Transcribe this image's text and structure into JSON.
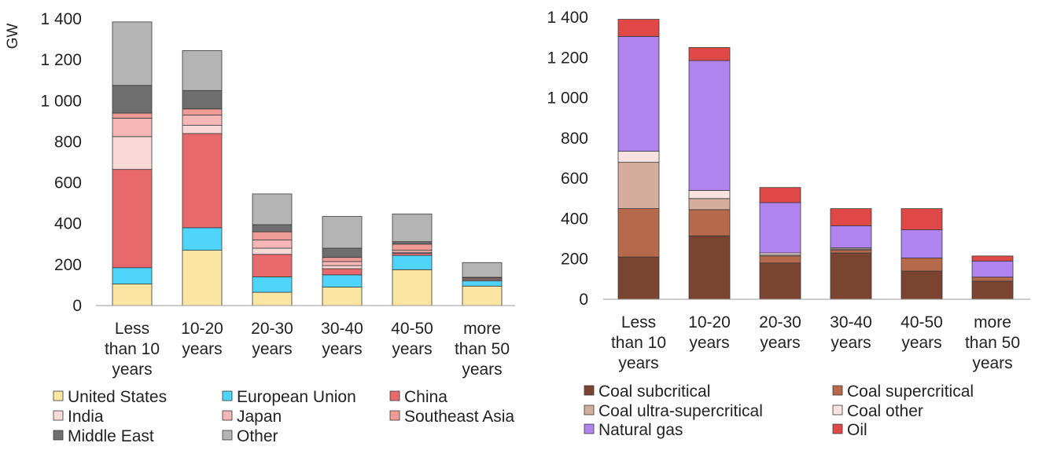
{
  "chart_data": [
    {
      "type": "bar",
      "stacked": true,
      "ylabel": "GW",
      "ylim": [
        0,
        1400
      ],
      "yticks": [
        "0",
        "200",
        "400",
        "600",
        "800",
        "1 000",
        "1 200",
        "1 400"
      ],
      "categories": [
        [
          "Less",
          "than 10",
          "years"
        ],
        [
          "10-20",
          "years"
        ],
        [
          "20-30",
          "years"
        ],
        [
          "30-40",
          "years"
        ],
        [
          "40-50",
          "years"
        ],
        [
          "more",
          "than 50",
          "years"
        ]
      ],
      "legend_position": "bottom",
      "series": [
        {
          "name": "United States",
          "color": "#fae5a3",
          "values": [
            105,
            270,
            65,
            90,
            175,
            95
          ]
        },
        {
          "name": "European Union",
          "color": "#4fd4fb",
          "values": [
            80,
            110,
            75,
            60,
            70,
            25
          ]
        },
        {
          "name": "China",
          "color": "#e8696b",
          "values": [
            480,
            460,
            110,
            30,
            10,
            0
          ]
        },
        {
          "name": "India",
          "color": "#f8d9d8",
          "values": [
            160,
            40,
            30,
            15,
            5,
            5
          ]
        },
        {
          "name": "Japan",
          "color": "#f6b6b5",
          "values": [
            90,
            50,
            40,
            20,
            10,
            5
          ]
        },
        {
          "name": "Southeast Asia",
          "color": "#ef9c96",
          "values": [
            25,
            30,
            40,
            20,
            30,
            5
          ]
        },
        {
          "name": "Middle East",
          "color": "#6e6e6e",
          "values": [
            135,
            90,
            35,
            45,
            12,
            3
          ]
        },
        {
          "name": "Other",
          "color": "#b4b4b4",
          "values": [
            310,
            195,
            150,
            155,
            135,
            72
          ]
        }
      ]
    },
    {
      "type": "bar",
      "stacked": true,
      "ylim": [
        0,
        1400
      ],
      "yticks": [
        "0",
        "200",
        "400",
        "600",
        "800",
        "1 000",
        "1 200",
        "1 400"
      ],
      "categories": [
        [
          "Less",
          "than 10",
          "years"
        ],
        [
          "10-20",
          "years"
        ],
        [
          "20-30",
          "years"
        ],
        [
          "30-40",
          "years"
        ],
        [
          "40-50",
          "years"
        ],
        [
          "more",
          "than 50",
          "years"
        ]
      ],
      "legend_position": "bottom",
      "series": [
        {
          "name": "Coal subcritical",
          "color": "#7a4430",
          "values": [
            210,
            315,
            180,
            230,
            140,
            90
          ]
        },
        {
          "name": "Coal supercritical",
          "color": "#b7694b",
          "values": [
            240,
            130,
            35,
            15,
            65,
            20
          ]
        },
        {
          "name": "Coal ultra-supercritical",
          "color": "#d4ad9d",
          "values": [
            230,
            55,
            5,
            5,
            0,
            0
          ]
        },
        {
          "name": "Coal other",
          "color": "#f8e2df",
          "values": [
            55,
            40,
            10,
            5,
            0,
            0
          ]
        },
        {
          "name": "Natural gas",
          "color": "#b083ee",
          "values": [
            570,
            645,
            250,
            110,
            140,
            80
          ]
        },
        {
          "name": "Oil",
          "color": "#e04848",
          "values": [
            85,
            65,
            75,
            85,
            105,
            25
          ]
        }
      ]
    }
  ]
}
